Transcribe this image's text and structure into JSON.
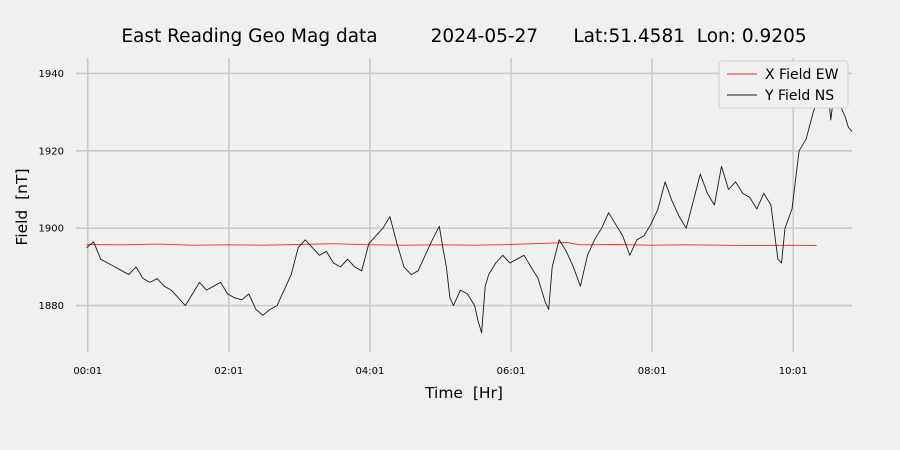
{
  "chart_data": {
    "type": "line",
    "title": "East Reading Geo Mag data         2024-05-27      Lat:51.4581  Lon: 0.9205",
    "xlabel": "Time  [Hr]",
    "ylabel": "Field  [nT]",
    "x_unit": "hours since 00:00",
    "xlim": [
      -0.15,
      10.85
    ],
    "ylim": [
      1868,
      1944
    ],
    "x_ticks": [
      {
        "x": 0.0167,
        "label": "00:01"
      },
      {
        "x": 2.0167,
        "label": "02:01"
      },
      {
        "x": 4.0167,
        "label": "04:01"
      },
      {
        "x": 6.0167,
        "label": "06:01"
      },
      {
        "x": 8.0167,
        "label": "08:01"
      },
      {
        "x": 10.0167,
        "label": "10:01"
      }
    ],
    "y_ticks": [
      1880,
      1900,
      1920,
      1940
    ],
    "grid": true,
    "legend_position": "top-right",
    "series": [
      {
        "name": "X Field EW",
        "color": "#e8322a",
        "points": [
          [
            0.0,
            1895.8
          ],
          [
            0.5,
            1895.7
          ],
          [
            1.0,
            1895.9
          ],
          [
            1.5,
            1895.6
          ],
          [
            2.0,
            1895.7
          ],
          [
            2.5,
            1895.6
          ],
          [
            3.0,
            1895.8
          ],
          [
            3.5,
            1896.0
          ],
          [
            4.0,
            1895.7
          ],
          [
            4.5,
            1895.6
          ],
          [
            5.0,
            1895.7
          ],
          [
            5.5,
            1895.6
          ],
          [
            6.0,
            1895.8
          ],
          [
            6.5,
            1896.1
          ],
          [
            6.8,
            1896.3
          ],
          [
            7.0,
            1895.7
          ],
          [
            7.5,
            1895.8
          ],
          [
            8.0,
            1895.6
          ],
          [
            8.5,
            1895.7
          ],
          [
            9.0,
            1895.6
          ],
          [
            9.5,
            1895.5
          ],
          [
            10.0,
            1895.6
          ],
          [
            10.35,
            1895.5
          ]
        ]
      },
      {
        "name": "Y Field NS",
        "color": "#1a1a1a",
        "points": [
          [
            0.0,
            1895.0
          ],
          [
            0.1,
            1896.5
          ],
          [
            0.2,
            1892.0
          ],
          [
            0.3,
            1891.0
          ],
          [
            0.4,
            1890.0
          ],
          [
            0.5,
            1889.0
          ],
          [
            0.6,
            1888.0
          ],
          [
            0.7,
            1890.0
          ],
          [
            0.8,
            1887.0
          ],
          [
            0.9,
            1886.0
          ],
          [
            1.0,
            1887.0
          ],
          [
            1.1,
            1885.0
          ],
          [
            1.2,
            1884.0
          ],
          [
            1.3,
            1882.0
          ],
          [
            1.4,
            1880.0
          ],
          [
            1.5,
            1883.0
          ],
          [
            1.6,
            1886.0
          ],
          [
            1.7,
            1884.0
          ],
          [
            1.8,
            1885.0
          ],
          [
            1.9,
            1886.0
          ],
          [
            2.0,
            1883.0
          ],
          [
            2.1,
            1882.0
          ],
          [
            2.2,
            1881.5
          ],
          [
            2.3,
            1883.0
          ],
          [
            2.4,
            1879.0
          ],
          [
            2.5,
            1877.5
          ],
          [
            2.6,
            1879.0
          ],
          [
            2.7,
            1880.0
          ],
          [
            2.8,
            1884.0
          ],
          [
            2.9,
            1888.0
          ],
          [
            3.0,
            1895.0
          ],
          [
            3.1,
            1897.0
          ],
          [
            3.2,
            1895.0
          ],
          [
            3.3,
            1893.0
          ],
          [
            3.4,
            1894.0
          ],
          [
            3.5,
            1891.0
          ],
          [
            3.6,
            1890.0
          ],
          [
            3.7,
            1892.0
          ],
          [
            3.8,
            1890.0
          ],
          [
            3.9,
            1889.0
          ],
          [
            4.0,
            1896.0
          ],
          [
            4.1,
            1898.0
          ],
          [
            4.2,
            1900.0
          ],
          [
            4.3,
            1903.0
          ],
          [
            4.4,
            1896.0
          ],
          [
            4.5,
            1890.0
          ],
          [
            4.6,
            1888.0
          ],
          [
            4.7,
            1889.0
          ],
          [
            4.8,
            1893.0
          ],
          [
            4.9,
            1897.0
          ],
          [
            5.0,
            1900.5
          ],
          [
            5.05,
            1895.0
          ],
          [
            5.1,
            1890.0
          ],
          [
            5.15,
            1882.0
          ],
          [
            5.2,
            1880.0
          ],
          [
            5.3,
            1884.0
          ],
          [
            5.4,
            1883.0
          ],
          [
            5.5,
            1880.0
          ],
          [
            5.55,
            1876.0
          ],
          [
            5.6,
            1873.0
          ],
          [
            5.65,
            1885.0
          ],
          [
            5.7,
            1888.0
          ],
          [
            5.8,
            1891.0
          ],
          [
            5.9,
            1893.0
          ],
          [
            6.0,
            1891.0
          ],
          [
            6.1,
            1892.0
          ],
          [
            6.2,
            1893.0
          ],
          [
            6.3,
            1890.0
          ],
          [
            6.4,
            1887.0
          ],
          [
            6.5,
            1881.0
          ],
          [
            6.55,
            1879.0
          ],
          [
            6.6,
            1890.0
          ],
          [
            6.7,
            1897.0
          ],
          [
            6.8,
            1894.0
          ],
          [
            6.9,
            1890.0
          ],
          [
            7.0,
            1885.0
          ],
          [
            7.1,
            1893.0
          ],
          [
            7.2,
            1897.0
          ],
          [
            7.3,
            1900.0
          ],
          [
            7.4,
            1904.0
          ],
          [
            7.5,
            1901.0
          ],
          [
            7.6,
            1898.0
          ],
          [
            7.7,
            1893.0
          ],
          [
            7.8,
            1897.0
          ],
          [
            7.9,
            1898.0
          ],
          [
            8.0,
            1901.0
          ],
          [
            8.1,
            1905.0
          ],
          [
            8.2,
            1912.0
          ],
          [
            8.3,
            1907.0
          ],
          [
            8.4,
            1903.0
          ],
          [
            8.5,
            1900.0
          ],
          [
            8.6,
            1907.0
          ],
          [
            8.7,
            1914.0
          ],
          [
            8.8,
            1909.0
          ],
          [
            8.9,
            1906.0
          ],
          [
            9.0,
            1916.0
          ],
          [
            9.1,
            1910.0
          ],
          [
            9.2,
            1912.0
          ],
          [
            9.3,
            1909.0
          ],
          [
            9.4,
            1908.0
          ],
          [
            9.5,
            1905.0
          ],
          [
            9.6,
            1909.0
          ],
          [
            9.7,
            1906.0
          ],
          [
            9.8,
            1892.0
          ],
          [
            9.85,
            1891.0
          ],
          [
            9.9,
            1900.0
          ],
          [
            10.0,
            1905.0
          ],
          [
            10.1,
            1920.0
          ],
          [
            10.2,
            1923.0
          ],
          [
            10.3,
            1930.0
          ],
          [
            10.4,
            1935.0
          ],
          [
            10.45,
            1940.0
          ],
          [
            10.5,
            1938.0
          ],
          [
            10.55,
            1928.0
          ],
          [
            10.6,
            1936.0
          ],
          [
            10.65,
            1933.0
          ],
          [
            10.7,
            1931.0
          ],
          [
            10.75,
            1929.0
          ],
          [
            10.8,
            1926.0
          ],
          [
            10.85,
            1925.0
          ]
        ]
      }
    ]
  }
}
